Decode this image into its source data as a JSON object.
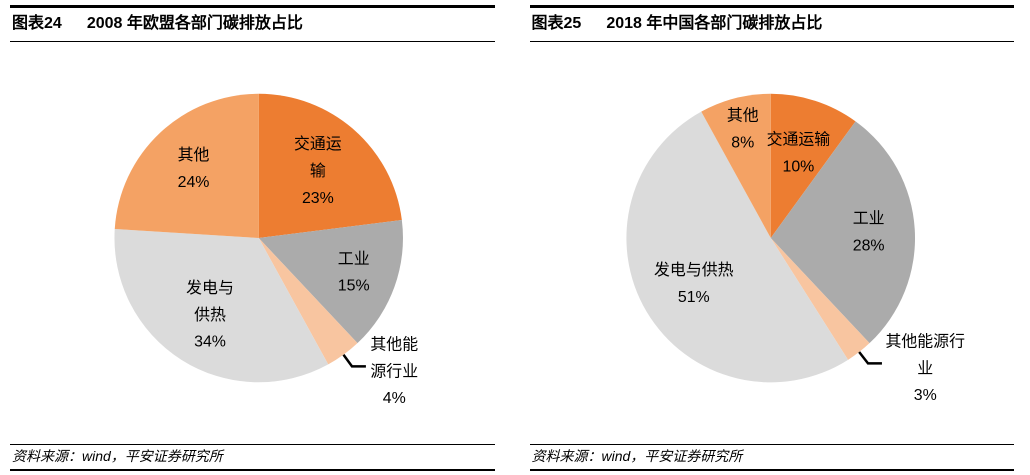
{
  "panels": [
    {
      "tag": "图表24",
      "title": "2008 年欧盟各部门碳排放占比",
      "source": "资料来源：wind，平安证券研究所"
    },
    {
      "tag": "图表25",
      "title": "2018 年中国各部门碳排放占比",
      "source": "资料来源：wind，平安证券研究所"
    }
  ],
  "colors": {
    "transport_orange": "#ED7D31",
    "other_light_orange": "#F4A264",
    "other_energy_peach": "#F8C5A0",
    "industry_gray": "#ABABAB",
    "power_light_gray": "#DBDBDB",
    "rule_black": "#000000"
  },
  "chart_data": [
    {
      "type": "pie",
      "title": "2008 年欧盟各部门碳排放占比",
      "start_angle": "12-oclock",
      "direction": "clockwise",
      "legend": "none",
      "slices": [
        {
          "label": "交通运输",
          "value_pct": 23,
          "color": "#ED7D31",
          "label_lines": [
            "交通运",
            "输",
            "23%"
          ],
          "label_placement": "inside",
          "label_radius": 0.62
        },
        {
          "label": "工业",
          "value_pct": 15,
          "color": "#ABABAB",
          "label_lines": [
            "工业",
            "15%"
          ],
          "label_placement": "inside",
          "label_radius": 0.7
        },
        {
          "label": "其他能源行业",
          "value_pct": 4,
          "color": "#F8C5A0",
          "label_lines": [
            "其他能",
            "源行业",
            "4%"
          ],
          "label_placement": "outside"
        },
        {
          "label": "发电与供热",
          "value_pct": 34,
          "color": "#DBDBDB",
          "label_lines": [
            "发电与",
            "供热",
            "34%"
          ],
          "label_placement": "inside",
          "label_radius": 0.63
        },
        {
          "label": "其他",
          "value_pct": 24,
          "color": "#F4A264",
          "label_lines": [
            "其他",
            "24%"
          ],
          "label_placement": "inside",
          "label_radius": 0.66
        }
      ]
    },
    {
      "type": "pie",
      "title": "2018 年中国各部门碳排放占比",
      "start_angle": "12-oclock",
      "direction": "clockwise",
      "legend": "none",
      "slices": [
        {
          "label": "交通运输",
          "value_pct": 10,
          "color": "#ED7D31",
          "label_lines": [
            "交通运输",
            "10%"
          ],
          "label_placement": "inside",
          "label_radius": 0.62
        },
        {
          "label": "工业",
          "value_pct": 28,
          "color": "#ABABAB",
          "label_lines": [
            "工业",
            "28%"
          ],
          "label_placement": "inside",
          "label_radius": 0.68
        },
        {
          "label": "其他能源行业",
          "value_pct": 3,
          "color": "#F8C5A0",
          "label_lines": [
            "其他能源行",
            "业",
            "3%"
          ],
          "label_placement": "outside"
        },
        {
          "label": "发电与供热",
          "value_pct": 51,
          "color": "#DBDBDB",
          "label_lines": [
            "发电与供热",
            "51%"
          ],
          "label_placement": "inside",
          "label_radius": 0.62
        },
        {
          "label": "其他",
          "value_pct": 8,
          "color": "#F4A264",
          "label_lines": [
            "其他",
            "8%"
          ],
          "label_placement": "inside",
          "label_radius": 0.78
        }
      ]
    }
  ]
}
